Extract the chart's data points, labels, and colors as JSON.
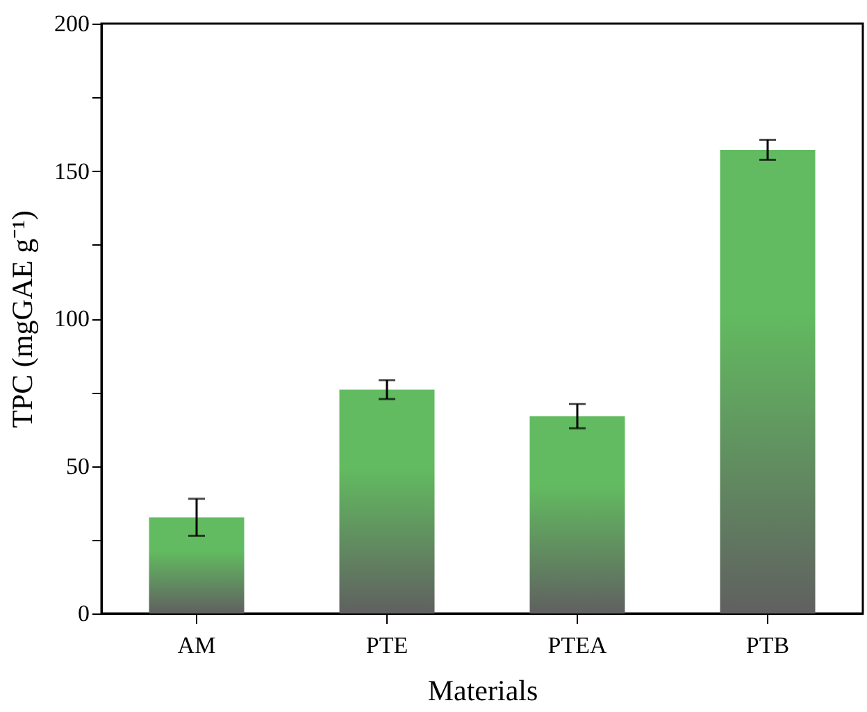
{
  "chart_data": {
    "type": "bar",
    "categories": [
      "AM",
      "PTE",
      "PTEA",
      "PTB"
    ],
    "values": [
      32.6,
      75.9,
      66.9,
      157.2
    ],
    "errors": [
      6.3,
      3.2,
      4.1,
      3.4
    ],
    "color": "#62bb60",
    "xlabel": "Materials",
    "ylabel": "TPC (mgGAE g⁻¹)",
    "ylim": [
      0,
      200
    ],
    "yticks": [
      0,
      {
        "value": 25,
        "label": null
      },
      50,
      {
        "value": 75,
        "label": null
      },
      100,
      {
        "value": 125,
        "label": null
      },
      150,
      {
        "value": 175,
        "label": null
      },
      200
    ],
    "grid": false
  }
}
